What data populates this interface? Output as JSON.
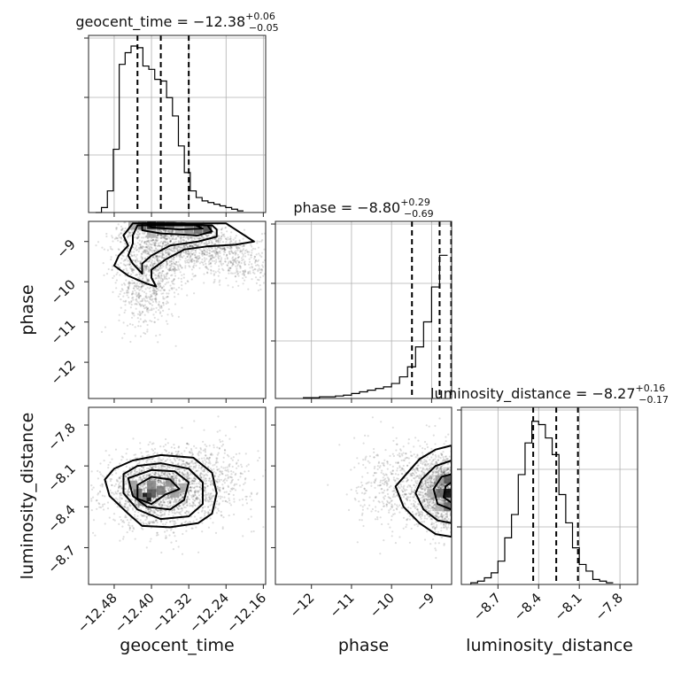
{
  "chart_data": {
    "type": "corner",
    "parameters": [
      {
        "name": "geocent_time",
        "axis_label": "geocent_time",
        "title_prefix": "geocent_time = −12.38",
        "title_sup": "+0.06",
        "title_sub": "−0.05",
        "range": [
          -12.535,
          -12.155
        ],
        "ticks": [
          -12.48,
          -12.4,
          -12.32,
          -12.24,
          -12.16
        ],
        "tick_labels": [
          "−12.48",
          "−12.40",
          "−12.32",
          "−12.24",
          "−12.16"
        ],
        "quantiles": [
          -12.43,
          -12.38,
          -12.32
        ],
        "hist_edges_start": -12.52,
        "hist_bin_width": 0.0127,
        "hist_counts": [
          0,
          0.03,
          0.13,
          0.38,
          0.89,
          0.96,
          1.0,
          0.99,
          0.88,
          0.86,
          0.8,
          0.79,
          0.69,
          0.58,
          0.4,
          0.24,
          0.13,
          0.09,
          0.07,
          0.06,
          0.05,
          0.04,
          0.03,
          0.02,
          0.01
        ]
      },
      {
        "name": "phase",
        "axis_label": "phase",
        "title_prefix": "phase = −8.80",
        "title_sup": "+0.29",
        "title_sub": "−0.69",
        "range": [
          -12.9,
          -8.5
        ],
        "ticks": [
          -12,
          -11,
          -10,
          -9
        ],
        "tick_labels": [
          "−12",
          "−11",
          "−10",
          "−9"
        ],
        "quantiles": [
          -9.49,
          -8.8,
          -8.51
        ],
        "hist_edges_start": -12.2,
        "hist_bin_width": 0.2,
        "hist_counts": [
          0.005,
          0.005,
          0.01,
          0.01,
          0.015,
          0.02,
          0.03,
          0.04,
          0.05,
          0.06,
          0.07,
          0.09,
          0.13,
          0.19,
          0.31,
          0.46,
          0.67,
          0.86
        ]
      },
      {
        "name": "luminosity_distance",
        "axis_label": "luminosity_distance",
        "title_prefix": "luminosity_distance = −8.27",
        "title_sup": "+0.16",
        "title_sub": "−0.17",
        "range": [
          -8.97,
          -7.67
        ],
        "ticks": [
          -8.7,
          -8.4,
          -8.1,
          -7.8
        ],
        "tick_labels": [
          "−8.7",
          "−8.4",
          "−8.1",
          "−7.8"
        ],
        "quantiles": [
          -8.44,
          -8.27,
          -8.11
        ],
        "hist_edges_start": -8.9,
        "hist_bin_width": 0.05,
        "hist_counts": [
          0.01,
          0.02,
          0.04,
          0.07,
          0.14,
          0.28,
          0.42,
          0.66,
          0.85,
          0.98,
          0.96,
          0.88,
          0.78,
          0.54,
          0.37,
          0.22,
          0.12,
          0.08,
          0.03,
          0.02,
          0.01
        ]
      }
    ],
    "correlations": [
      {
        "x": "geocent_time",
        "y": "phase",
        "clusters": [
          {
            "mean": [
              -12.39,
              -9.55
            ],
            "sd": [
              0.045,
              0.35
            ],
            "n": 550
          },
          {
            "mean": [
              -12.3,
              -9.15
            ],
            "sd": [
              0.07,
              0.22
            ],
            "n": 700
          },
          {
            "mean": [
              -12.41,
              -10.3
            ],
            "sd": [
              0.03,
              0.45
            ],
            "n": 380
          },
          {
            "mean": [
              -12.2,
              -9.6
            ],
            "sd": [
              0.05,
              0.25
            ],
            "n": 260
          },
          {
            "mean": [
              -12.38,
              -8.75
            ],
            "sd": [
              0.05,
              0.15
            ],
            "n": 500
          }
        ],
        "density_cells": [
          {
            "x": -12.4,
            "y": -8.6,
            "v": 1.0
          },
          {
            "x": -12.42,
            "y": -8.6,
            "v": 0.6
          },
          {
            "x": -12.38,
            "y": -8.6,
            "v": 0.75
          },
          {
            "x": -12.36,
            "y": -8.6,
            "v": 0.55
          },
          {
            "x": -12.32,
            "y": -8.7,
            "v": 0.45
          },
          {
            "x": -12.3,
            "y": -8.7,
            "v": 0.6
          },
          {
            "x": -12.28,
            "y": -8.7,
            "v": 0.75
          },
          {
            "x": -12.34,
            "y": -8.7,
            "v": 0.3
          },
          {
            "x": -12.44,
            "y": -8.6,
            "v": 0.35
          },
          {
            "x": -12.4,
            "y": -8.8,
            "v": 0.3
          }
        ],
        "contours": [
          [
            [
              -12.44,
              -8.55
            ],
            [
              -12.46,
              -8.85
            ],
            [
              -12.45,
              -9.1
            ],
            [
              -12.47,
              -9.35
            ],
            [
              -12.48,
              -9.6
            ],
            [
              -12.45,
              -9.85
            ],
            [
              -12.41,
              -10.05
            ],
            [
              -12.39,
              -10.12
            ],
            [
              -12.4,
              -9.9
            ],
            [
              -12.4,
              -9.7
            ],
            [
              -12.37,
              -9.45
            ],
            [
              -12.33,
              -9.2
            ],
            [
              -12.28,
              -9.12
            ],
            [
              -12.22,
              -9.08
            ],
            [
              -12.18,
              -9.0
            ],
            [
              -12.2,
              -8.85
            ],
            [
              -12.22,
              -8.7
            ],
            [
              -12.24,
              -8.55
            ]
          ],
          [
            [
              -12.43,
              -8.6
            ],
            [
              -12.44,
              -8.85
            ],
            [
              -12.44,
              -9.05
            ],
            [
              -12.45,
              -9.35
            ],
            [
              -12.44,
              -9.55
            ],
            [
              -12.42,
              -9.8
            ],
            [
              -12.42,
              -9.55
            ],
            [
              -12.4,
              -9.35
            ],
            [
              -12.36,
              -9.1
            ],
            [
              -12.3,
              -9.0
            ],
            [
              -12.26,
              -8.88
            ],
            [
              -12.26,
              -8.7
            ],
            [
              -12.27,
              -8.6
            ]
          ],
          [
            [
              -12.42,
              -8.55
            ],
            [
              -12.42,
              -8.72
            ],
            [
              -12.38,
              -8.8
            ],
            [
              -12.3,
              -8.85
            ],
            [
              -12.27,
              -8.75
            ],
            [
              -12.28,
              -8.6
            ],
            [
              -12.33,
              -8.55
            ]
          ],
          [
            [
              -12.41,
              -8.55
            ],
            [
              -12.4,
              -8.65
            ],
            [
              -12.34,
              -8.7
            ],
            [
              -12.29,
              -8.68
            ],
            [
              -12.31,
              -8.57
            ]
          ]
        ]
      },
      {
        "x": "geocent_time",
        "y": "luminosity_distance",
        "clusters": [
          {
            "mean": [
              -12.39,
              -8.29
            ],
            "sd": [
              0.055,
              0.13
            ],
            "n": 1600
          },
          {
            "mean": [
              -12.3,
              -8.2
            ],
            "sd": [
              0.06,
              0.14
            ],
            "n": 700
          }
        ],
        "density_cells": [
          {
            "x": -12.41,
            "y": -8.33,
            "v": 1.0
          },
          {
            "x": -12.43,
            "y": -8.3,
            "v": 0.6
          },
          {
            "x": -12.4,
            "y": -8.3,
            "v": 0.7
          },
          {
            "x": -12.38,
            "y": -8.28,
            "v": 0.55
          },
          {
            "x": -12.4,
            "y": -8.24,
            "v": 0.5
          },
          {
            "x": -12.36,
            "y": -8.22,
            "v": 0.45
          },
          {
            "x": -12.42,
            "y": -8.36,
            "v": 0.45
          },
          {
            "x": -12.44,
            "y": -8.24,
            "v": 0.4
          },
          {
            "x": -12.35,
            "y": -8.3,
            "v": 0.4
          },
          {
            "x": -12.33,
            "y": -8.26,
            "v": 0.35
          }
        ],
        "contours": [
          [
            [
              -12.48,
              -8.12
            ],
            [
              -12.5,
              -8.2
            ],
            [
              -12.49,
              -8.32
            ],
            [
              -12.45,
              -8.45
            ],
            [
              -12.42,
              -8.54
            ],
            [
              -12.36,
              -8.55
            ],
            [
              -12.3,
              -8.52
            ],
            [
              -12.27,
              -8.45
            ],
            [
              -12.26,
              -8.3
            ],
            [
              -12.27,
              -8.15
            ],
            [
              -12.31,
              -8.04
            ],
            [
              -12.38,
              -8.02
            ],
            [
              -12.44,
              -8.06
            ]
          ],
          [
            [
              -12.46,
              -8.16
            ],
            [
              -12.46,
              -8.3
            ],
            [
              -12.43,
              -8.42
            ],
            [
              -12.38,
              -8.49
            ],
            [
              -12.32,
              -8.47
            ],
            [
              -12.29,
              -8.38
            ],
            [
              -12.29,
              -8.22
            ],
            [
              -12.32,
              -8.12
            ],
            [
              -12.38,
              -8.08
            ],
            [
              -12.43,
              -8.1
            ]
          ],
          [
            [
              -12.45,
              -8.19
            ],
            [
              -12.44,
              -8.32
            ],
            [
              -12.41,
              -8.4
            ],
            [
              -12.36,
              -8.42
            ],
            [
              -12.33,
              -8.35
            ],
            [
              -12.32,
              -8.22
            ],
            [
              -12.35,
              -8.14
            ],
            [
              -12.4,
              -8.13
            ]
          ],
          [
            [
              -12.43,
              -8.24
            ],
            [
              -12.43,
              -8.34
            ],
            [
              -12.4,
              -8.38
            ],
            [
              -12.37,
              -8.31
            ],
            [
              -12.34,
              -8.27
            ],
            [
              -12.36,
              -8.2
            ],
            [
              -12.4,
              -8.18
            ]
          ]
        ]
      },
      {
        "x": "phase",
        "y": "luminosity_distance",
        "clusters": [
          {
            "mean": [
              -8.65,
              -8.28
            ],
            "sd": [
              0.35,
              0.14
            ],
            "n": 1800
          },
          {
            "mean": [
              -9.8,
              -8.25
            ],
            "sd": [
              0.55,
              0.16
            ],
            "n": 500
          }
        ],
        "density_cells": [
          {
            "x": -8.6,
            "y": -8.3,
            "v": 1.0
          },
          {
            "x": -8.6,
            "y": -8.2,
            "v": 0.7
          },
          {
            "x": -8.6,
            "y": -8.4,
            "v": 0.6
          },
          {
            "x": -8.8,
            "y": -8.3,
            "v": 0.6
          },
          {
            "x": -8.8,
            "y": -8.2,
            "v": 0.4
          },
          {
            "x": -9.0,
            "y": -8.3,
            "v": 0.3
          },
          {
            "x": -8.8,
            "y": -8.4,
            "v": 0.3
          }
        ],
        "contours": [
          [
            [
              -8.5,
              -7.95
            ],
            [
              -8.9,
              -7.98
            ],
            [
              -9.3,
              -8.05
            ],
            [
              -9.6,
              -8.15
            ],
            [
              -9.9,
              -8.25
            ],
            [
              -9.7,
              -8.4
            ],
            [
              -9.3,
              -8.52
            ],
            [
              -8.9,
              -8.6
            ],
            [
              -8.5,
              -8.62
            ]
          ],
          [
            [
              -8.5,
              -8.06
            ],
            [
              -8.9,
              -8.1
            ],
            [
              -9.25,
              -8.2
            ],
            [
              -9.4,
              -8.3
            ],
            [
              -9.2,
              -8.42
            ],
            [
              -8.85,
              -8.5
            ],
            [
              -8.5,
              -8.52
            ]
          ],
          [
            [
              -8.5,
              -8.16
            ],
            [
              -8.75,
              -8.18
            ],
            [
              -8.95,
              -8.27
            ],
            [
              -8.85,
              -8.38
            ],
            [
              -8.5,
              -8.42
            ]
          ],
          [
            [
              -8.5,
              -8.22
            ],
            [
              -8.65,
              -8.25
            ],
            [
              -8.7,
              -8.33
            ],
            [
              -8.5,
              -8.37
            ]
          ]
        ]
      }
    ]
  }
}
